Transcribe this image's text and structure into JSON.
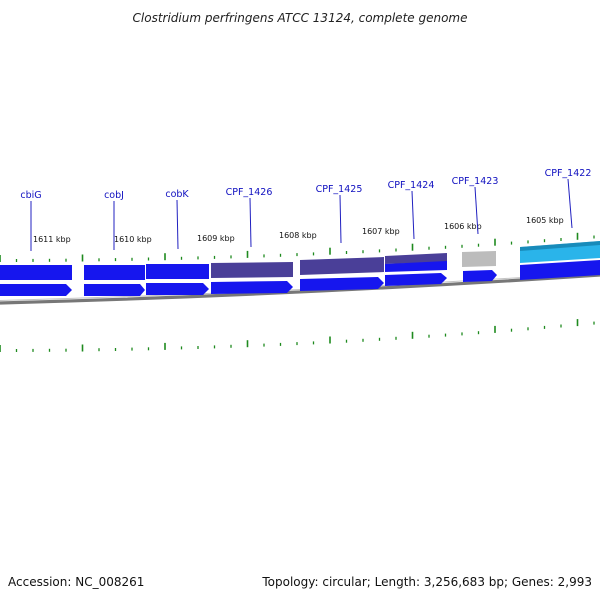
{
  "title": "Clostridium perfringens ATCC 13124, complete genome",
  "footer": {
    "accession": "Accession: NC_008261",
    "summary": "Topology: circular; Length: 3,256,683 bp; Genes: 2,993"
  },
  "kbp_labels": [
    "1611 kbp",
    "1610 kbp",
    "1609 kbp",
    "1608 kbp",
    "1607 kbp",
    "1606 kbp",
    "1605 kbp"
  ],
  "genes": [
    {
      "name": "cbiG"
    },
    {
      "name": "cobJ"
    },
    {
      "name": "cobK"
    },
    {
      "name": "CPF_1426"
    },
    {
      "name": "CPF_1425"
    },
    {
      "name": "CPF_1424"
    },
    {
      "name": "CPF_1423"
    },
    {
      "name": "CPF_1422"
    }
  ],
  "colors": {
    "cds": "#1616ee",
    "cds_alt": "#4a3f98",
    "rna": "#bcbcbc",
    "highlight": "#2ab4ea",
    "backbone": "#8a8a8a",
    "ticks": "#1e8a1e",
    "labels": "#1010c0"
  }
}
